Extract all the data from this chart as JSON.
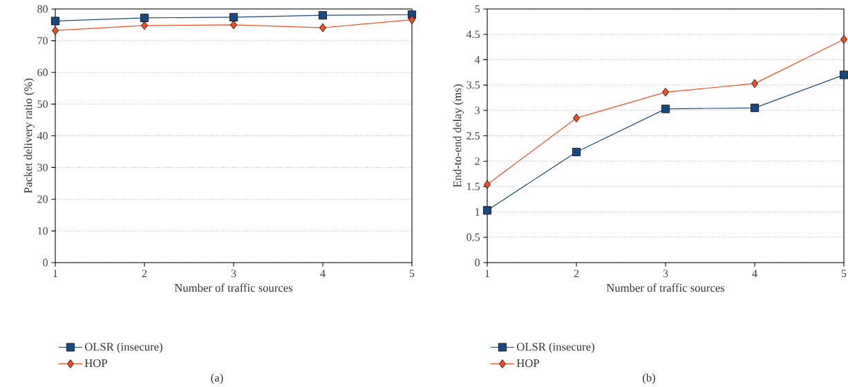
{
  "chart_data": [
    {
      "type": "line",
      "xlabel": "Number of traffic sources",
      "ylabel": "Packet delivery ratio (%)",
      "x": [
        1,
        2,
        3,
        4,
        5
      ],
      "xlim": [
        1,
        5
      ],
      "xticks": [
        1,
        2,
        3,
        4,
        5
      ],
      "ylim": [
        0,
        80
      ],
      "yticks": [
        0,
        10,
        20,
        30,
        40,
        50,
        60,
        70,
        80
      ],
      "grid": "y",
      "legend": "bottom",
      "annotations": [
        "(a)"
      ],
      "series": [
        {
          "name": "OLSR (insecure)",
          "color": "#1a4a82",
          "marker": "square",
          "values": [
            76.2,
            77.2,
            77.4,
            78.0,
            78.2
          ]
        },
        {
          "name": "HOP",
          "color": "#f04e23",
          "marker": "diamond",
          "values": [
            73.2,
            74.8,
            75.0,
            74.1,
            76.6
          ]
        }
      ]
    },
    {
      "type": "line",
      "xlabel": "Number of traffic sources",
      "ylabel": "End-to-end delay (ms)",
      "x": [
        1,
        2,
        3,
        4,
        5
      ],
      "xlim": [
        1,
        5
      ],
      "xticks": [
        1,
        2,
        3,
        4,
        5
      ],
      "ylim": [
        0,
        5
      ],
      "yticks": [
        0,
        0.5,
        1,
        1.5,
        2,
        2.5,
        3,
        3.5,
        4,
        4.5,
        5
      ],
      "grid": "y",
      "legend": "bottom",
      "annotations": [
        "(b)"
      ],
      "series": [
        {
          "name": "OLSR (insecure)",
          "color": "#1a4a82",
          "marker": "square",
          "values": [
            1.03,
            2.18,
            3.03,
            3.05,
            3.7
          ]
        },
        {
          "name": "HOP",
          "color": "#f04e23",
          "marker": "diamond",
          "values": [
            1.54,
            2.85,
            3.36,
            3.53,
            4.4
          ]
        }
      ]
    }
  ]
}
